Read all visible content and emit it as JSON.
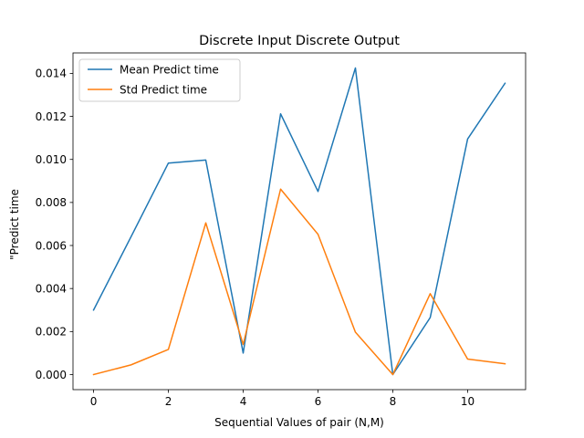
{
  "chart_data": {
    "type": "line",
    "title": "Discrete Input Discrete Output",
    "xlabel": "Sequential Values of pair (N,M)",
    "ylabel": "\"Predict time",
    "xlim": [
      -0.55,
      11.55
    ],
    "ylim": [
      -0.0007,
      0.01495
    ],
    "x": [
      0,
      1,
      2,
      3,
      4,
      5,
      6,
      7,
      8,
      9,
      10,
      11
    ],
    "xticks": [
      0,
      2,
      4,
      6,
      8,
      10
    ],
    "xtick_labels": [
      "0",
      "2",
      "4",
      "6",
      "8",
      "10"
    ],
    "yticks": [
      0.0,
      0.002,
      0.004,
      0.006,
      0.008,
      0.01,
      0.012,
      0.014
    ],
    "ytick_labels": [
      "0.000",
      "0.002",
      "0.004",
      "0.006",
      "0.008",
      "0.010",
      "0.012",
      "0.014"
    ],
    "grid": false,
    "legend_position": "top-left",
    "series": [
      {
        "name": "Mean Predict time",
        "color": "#1f77b4",
        "values": [
          0.003,
          0.0064,
          0.00983,
          0.00997,
          0.001,
          0.01212,
          0.00851,
          0.01425,
          0.0,
          0.00265,
          0.01095,
          0.01354
        ]
      },
      {
        "name": "Std Predict time",
        "color": "#ff7f0e",
        "values": [
          0.0,
          0.00045,
          0.00117,
          0.00705,
          0.0014,
          0.00862,
          0.00652,
          0.00197,
          0.0,
          0.00376,
          0.00072,
          0.0005
        ]
      }
    ]
  }
}
